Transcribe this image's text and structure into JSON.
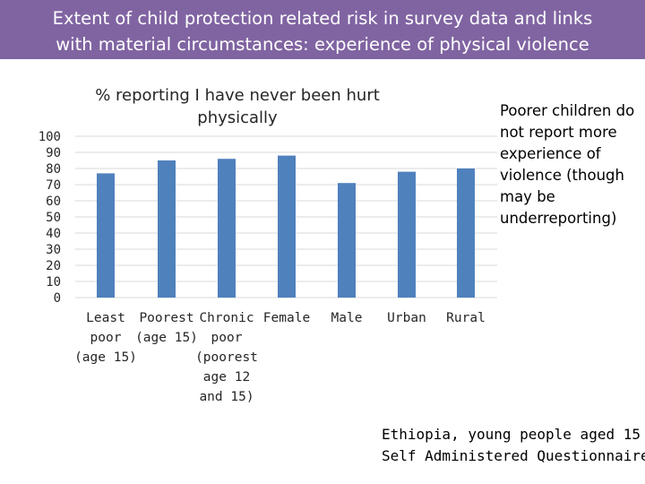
{
  "header": {
    "title": "Extent of child protection related risk in survey data and links\nwith material circumstances: experience of physical violence"
  },
  "note": "Poorer children do not report more experience of violence (though may be underreporting)",
  "source": {
    "line1": "Ethiopia, young people aged 15",
    "line2": "Self Administered Questionnaire"
  },
  "colors": {
    "header": "#8064a2",
    "bar": "#4f81bd",
    "grid": "#d9d9d9"
  },
  "chart_data": {
    "type": "bar",
    "title": "% reporting I have never been hurt physically",
    "categories": [
      [
        "Least",
        "poor",
        "(age 15)"
      ],
      [
        "Poorest",
        "(age 15)"
      ],
      [
        "Chronic",
        "poor",
        "(poorest",
        "age 12",
        "and 15)"
      ],
      [
        "Female"
      ],
      [
        "Male"
      ],
      [
        "Urban"
      ],
      [
        "Rural"
      ]
    ],
    "values": [
      77,
      85,
      86,
      88,
      71,
      78,
      80
    ],
    "ylim": [
      0,
      100
    ],
    "yticks": [
      0,
      10,
      20,
      30,
      40,
      50,
      60,
      70,
      80,
      90,
      100
    ],
    "grid": true,
    "xlabel": "",
    "ylabel": ""
  }
}
